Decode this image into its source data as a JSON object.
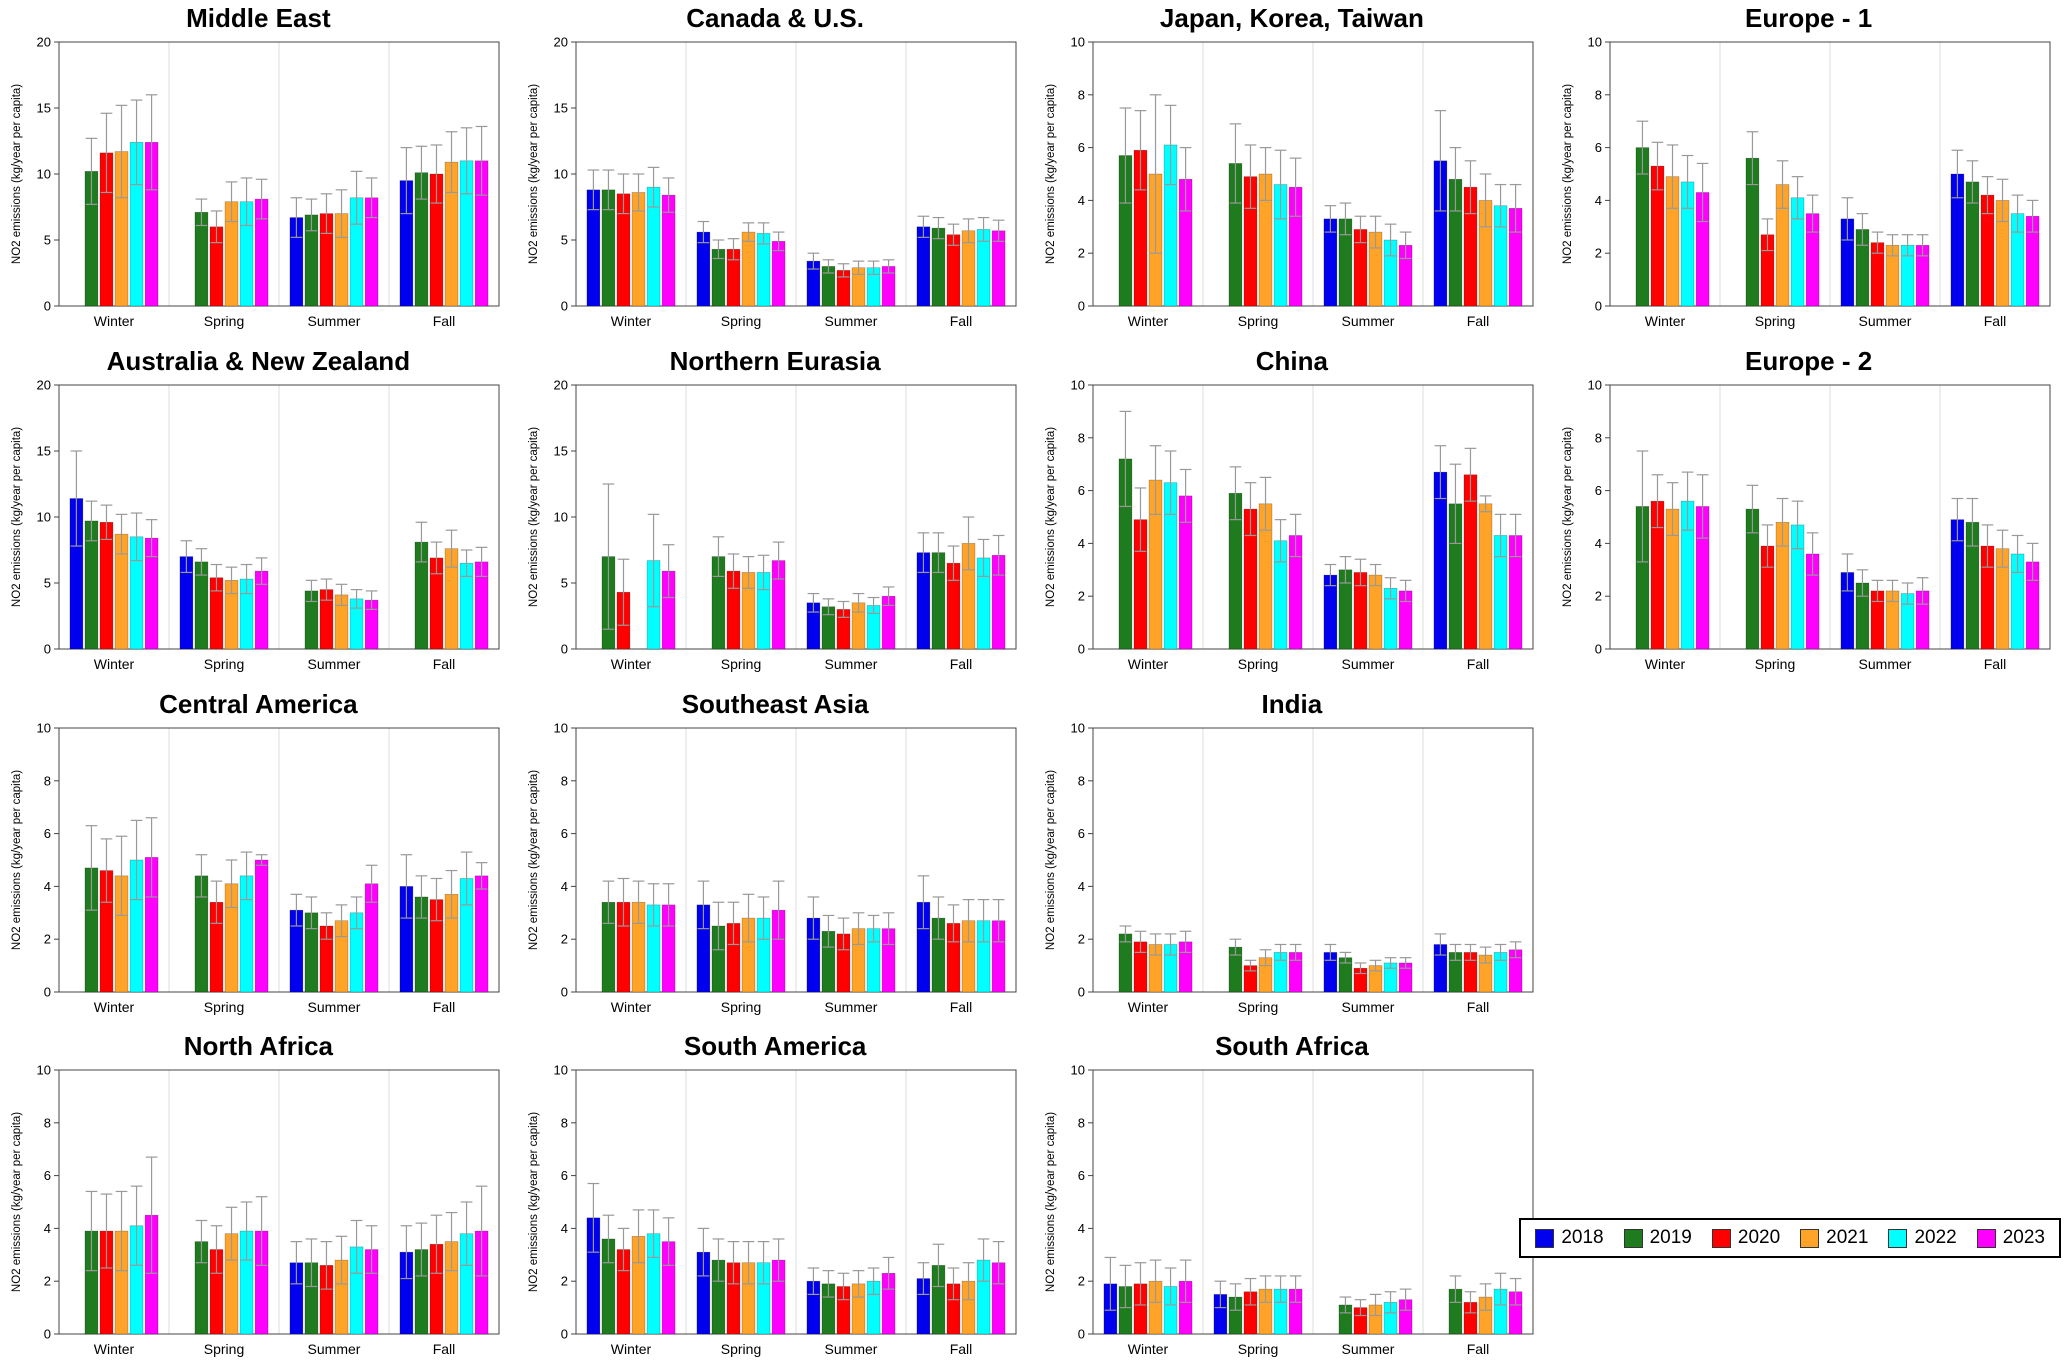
{
  "figure": {
    "background": "#ffffff"
  },
  "chart_data": {
    "type": "bar",
    "ylabel": "NO2 emissions (kg/year per capita)",
    "categories": [
      "Winter",
      "Spring",
      "Summer",
      "Fall"
    ],
    "years": [
      "2018",
      "2019",
      "2020",
      "2021",
      "2022",
      "2023"
    ],
    "colors": {
      "2018": "#0000ee",
      "2019": "#1e7b1e",
      "2020": "#ff0000",
      "2021": "#ffa428",
      "2022": "#00ffff",
      "2023": "#ff00ff"
    },
    "error_bar_color": "#999999",
    "grid": "vertical-light",
    "legend": {
      "position": "bottom-right",
      "labels": [
        "2018",
        "2019",
        "2020",
        "2021",
        "2022",
        "2023"
      ]
    },
    "panels": [
      {
        "title": "Middle East",
        "ymax": 20,
        "ytick": 5,
        "values": {
          "2018": [
            null,
            null,
            6.7,
            9.5
          ],
          "2019": [
            10.2,
            7.1,
            6.9,
            10.1
          ],
          "2020": [
            11.6,
            6.0,
            7.0,
            10.0
          ],
          "2021": [
            11.7,
            7.9,
            7.0,
            10.9
          ],
          "2022": [
            12.4,
            7.9,
            8.2,
            11.0
          ],
          "2023": [
            12.4,
            8.1,
            8.2,
            11.0
          ]
        },
        "errors": {
          "2018": [
            null,
            null,
            1.5,
            2.5
          ],
          "2019": [
            2.5,
            1.0,
            1.2,
            2.0
          ],
          "2020": [
            3.0,
            1.2,
            1.5,
            2.2
          ],
          "2021": [
            3.5,
            1.5,
            1.8,
            2.3
          ],
          "2022": [
            3.2,
            1.8,
            2.0,
            2.5
          ],
          "2023": [
            3.6,
            1.5,
            1.5,
            2.6
          ]
        }
      },
      {
        "title": "Canada & U.S.",
        "ymax": 20,
        "ytick": 5,
        "values": {
          "2018": [
            8.8,
            5.6,
            3.4,
            6.0
          ],
          "2019": [
            8.8,
            4.3,
            3.0,
            5.9
          ],
          "2020": [
            8.5,
            4.3,
            2.7,
            5.4
          ],
          "2021": [
            8.6,
            5.6,
            2.9,
            5.7
          ],
          "2022": [
            9.0,
            5.5,
            2.9,
            5.8
          ],
          "2023": [
            8.4,
            4.9,
            3.0,
            5.7
          ]
        },
        "errors": {
          "2018": [
            1.5,
            0.8,
            0.6,
            0.8
          ],
          "2019": [
            1.5,
            0.7,
            0.5,
            0.8
          ],
          "2020": [
            1.5,
            0.8,
            0.5,
            0.8
          ],
          "2021": [
            1.4,
            0.7,
            0.5,
            0.9
          ],
          "2022": [
            1.5,
            0.8,
            0.5,
            0.9
          ],
          "2023": [
            1.3,
            0.7,
            0.5,
            0.8
          ]
        }
      },
      {
        "title": "Japan, Korea, Taiwan",
        "ymax": 10,
        "ytick": 2,
        "values": {
          "2018": [
            null,
            null,
            3.3,
            5.5
          ],
          "2019": [
            5.7,
            5.4,
            3.3,
            4.8
          ],
          "2020": [
            5.9,
            4.9,
            2.9,
            4.5
          ],
          "2021": [
            5.0,
            5.0,
            2.8,
            4.0
          ],
          "2022": [
            6.1,
            4.6,
            2.5,
            3.8
          ],
          "2023": [
            4.8,
            4.5,
            2.3,
            3.7
          ]
        },
        "errors": {
          "2018": [
            null,
            null,
            0.5,
            1.9
          ],
          "2019": [
            1.8,
            1.5,
            0.6,
            1.2
          ],
          "2020": [
            1.5,
            1.2,
            0.5,
            1.0
          ],
          "2021": [
            3.0,
            1.0,
            0.6,
            1.0
          ],
          "2022": [
            1.5,
            1.3,
            0.6,
            0.8
          ],
          "2023": [
            1.2,
            1.1,
            0.5,
            0.9
          ]
        }
      },
      {
        "title": "Europe - 1",
        "ymax": 10,
        "ytick": 2,
        "values": {
          "2018": [
            null,
            null,
            3.3,
            5.0
          ],
          "2019": [
            6.0,
            5.6,
            2.9,
            4.7
          ],
          "2020": [
            5.3,
            2.7,
            2.4,
            4.2
          ],
          "2021": [
            4.9,
            4.6,
            2.3,
            4.0
          ],
          "2022": [
            4.7,
            4.1,
            2.3,
            3.5
          ],
          "2023": [
            4.3,
            3.5,
            2.3,
            3.4
          ]
        },
        "errors": {
          "2018": [
            null,
            null,
            0.8,
            0.9
          ],
          "2019": [
            1.0,
            1.0,
            0.6,
            0.8
          ],
          "2020": [
            0.9,
            0.6,
            0.4,
            0.7
          ],
          "2021": [
            1.2,
            0.9,
            0.4,
            0.8
          ],
          "2022": [
            1.0,
            0.8,
            0.4,
            0.7
          ],
          "2023": [
            1.1,
            0.7,
            0.4,
            0.6
          ]
        }
      },
      {
        "title": "Australia & New Zealand",
        "ymax": 20,
        "ytick": 5,
        "values": {
          "2018": [
            11.4,
            7.0,
            null,
            null
          ],
          "2019": [
            9.7,
            6.6,
            4.4,
            8.1
          ],
          "2020": [
            9.6,
            5.4,
            4.5,
            6.9
          ],
          "2021": [
            8.7,
            5.2,
            4.1,
            7.6
          ],
          "2022": [
            8.5,
            5.3,
            3.8,
            6.5
          ],
          "2023": [
            8.4,
            5.9,
            3.7,
            6.6
          ]
        },
        "errors": {
          "2018": [
            3.6,
            1.2,
            null,
            null
          ],
          "2019": [
            1.5,
            1.0,
            0.8,
            1.5
          ],
          "2020": [
            1.3,
            1.0,
            0.8,
            1.2
          ],
          "2021": [
            1.5,
            1.0,
            0.8,
            1.4
          ],
          "2022": [
            1.8,
            1.1,
            0.7,
            1.0
          ],
          "2023": [
            1.4,
            1.0,
            0.7,
            1.1
          ]
        }
      },
      {
        "title": "Northern Eurasia",
        "ymax": 20,
        "ytick": 5,
        "values": {
          "2018": [
            null,
            null,
            3.5,
            7.3
          ],
          "2019": [
            7.0,
            7.0,
            3.2,
            7.3
          ],
          "2020": [
            4.3,
            5.9,
            3.0,
            6.5
          ],
          "2021": [
            null,
            5.8,
            3.5,
            8.0
          ],
          "2022": [
            6.7,
            5.8,
            3.3,
            6.9
          ],
          "2023": [
            5.9,
            6.7,
            4.0,
            7.1
          ]
        },
        "errors": {
          "2018": [
            null,
            null,
            0.7,
            1.5
          ],
          "2019": [
            5.5,
            1.5,
            0.6,
            1.5
          ],
          "2020": [
            2.5,
            1.3,
            0.6,
            1.3
          ],
          "2021": [
            null,
            1.2,
            0.7,
            2.0
          ],
          "2022": [
            3.5,
            1.3,
            0.6,
            1.4
          ],
          "2023": [
            2.0,
            1.4,
            0.7,
            1.5
          ]
        }
      },
      {
        "title": "China",
        "ymax": 10,
        "ytick": 2,
        "values": {
          "2018": [
            null,
            null,
            2.8,
            6.7
          ],
          "2019": [
            7.2,
            5.9,
            3.0,
            5.5
          ],
          "2020": [
            4.9,
            5.3,
            2.9,
            6.6
          ],
          "2021": [
            6.4,
            5.5,
            2.8,
            5.5
          ],
          "2022": [
            6.3,
            4.1,
            2.3,
            4.3
          ],
          "2023": [
            5.8,
            4.3,
            2.2,
            4.3
          ]
        },
        "errors": {
          "2018": [
            null,
            null,
            0.4,
            1.0
          ],
          "2019": [
            1.8,
            1.0,
            0.5,
            1.5
          ],
          "2020": [
            1.2,
            1.0,
            0.5,
            1.0
          ],
          "2021": [
            1.3,
            1.0,
            0.4,
            0.3
          ],
          "2022": [
            1.2,
            0.8,
            0.4,
            0.8
          ],
          "2023": [
            1.0,
            0.8,
            0.4,
            0.8
          ]
        }
      },
      {
        "title": "Europe - 2",
        "ymax": 10,
        "ytick": 2,
        "values": {
          "2018": [
            null,
            null,
            2.9,
            4.9
          ],
          "2019": [
            5.4,
            5.3,
            2.5,
            4.8
          ],
          "2020": [
            5.6,
            3.9,
            2.2,
            3.9
          ],
          "2021": [
            5.3,
            4.8,
            2.2,
            3.8
          ],
          "2022": [
            5.6,
            4.7,
            2.1,
            3.6
          ],
          "2023": [
            5.4,
            3.6,
            2.2,
            3.3
          ]
        },
        "errors": {
          "2018": [
            null,
            null,
            0.7,
            0.8
          ],
          "2019": [
            2.1,
            0.9,
            0.5,
            0.9
          ],
          "2020": [
            1.0,
            0.8,
            0.4,
            0.8
          ],
          "2021": [
            1.0,
            0.9,
            0.4,
            0.7
          ],
          "2022": [
            1.1,
            0.9,
            0.4,
            0.7
          ],
          "2023": [
            1.2,
            0.8,
            0.5,
            0.7
          ]
        }
      },
      {
        "title": "Central America",
        "ymax": 10,
        "ytick": 2,
        "values": {
          "2018": [
            null,
            null,
            3.1,
            4.0
          ],
          "2019": [
            4.7,
            4.4,
            3.0,
            3.6
          ],
          "2020": [
            4.6,
            3.4,
            2.5,
            3.5
          ],
          "2021": [
            4.4,
            4.1,
            2.7,
            3.7
          ],
          "2022": [
            5.0,
            4.4,
            3.0,
            4.3
          ],
          "2023": [
            5.1,
            5.0,
            4.1,
            4.4
          ]
        },
        "errors": {
          "2018": [
            null,
            null,
            0.6,
            1.2
          ],
          "2019": [
            1.6,
            0.8,
            0.6,
            0.8
          ],
          "2020": [
            1.2,
            0.8,
            0.5,
            0.8
          ],
          "2021": [
            1.5,
            0.9,
            0.6,
            0.9
          ],
          "2022": [
            1.5,
            0.9,
            0.6,
            1.0
          ],
          "2023": [
            1.5,
            0.2,
            0.7,
            0.5
          ]
        }
      },
      {
        "title": "Southeast Asia",
        "ymax": 10,
        "ytick": 2,
        "values": {
          "2018": [
            null,
            3.3,
            2.8,
            3.4
          ],
          "2019": [
            3.4,
            2.5,
            2.3,
            2.8
          ],
          "2020": [
            3.4,
            2.6,
            2.2,
            2.6
          ],
          "2021": [
            3.4,
            2.8,
            2.4,
            2.7
          ],
          "2022": [
            3.3,
            2.8,
            2.4,
            2.7
          ],
          "2023": [
            3.3,
            3.1,
            2.4,
            2.7
          ]
        },
        "errors": {
          "2018": [
            null,
            0.9,
            0.8,
            1.0
          ],
          "2019": [
            0.8,
            0.9,
            0.6,
            0.8
          ],
          "2020": [
            0.9,
            0.8,
            0.6,
            0.7
          ],
          "2021": [
            0.8,
            0.9,
            0.6,
            0.8
          ],
          "2022": [
            0.8,
            0.8,
            0.5,
            0.8
          ],
          "2023": [
            0.8,
            1.1,
            0.6,
            0.8
          ]
        }
      },
      {
        "title": "India",
        "ymax": 10,
        "ytick": 2,
        "values": {
          "2018": [
            null,
            null,
            1.5,
            1.8
          ],
          "2019": [
            2.2,
            1.7,
            1.3,
            1.5
          ],
          "2020": [
            1.9,
            1.0,
            0.9,
            1.5
          ],
          "2021": [
            1.8,
            1.3,
            1.0,
            1.4
          ],
          "2022": [
            1.8,
            1.5,
            1.1,
            1.5
          ],
          "2023": [
            1.9,
            1.5,
            1.1,
            1.6
          ]
        },
        "errors": {
          "2018": [
            null,
            null,
            0.3,
            0.4
          ],
          "2019": [
            0.3,
            0.3,
            0.2,
            0.3
          ],
          "2020": [
            0.4,
            0.2,
            0.2,
            0.3
          ],
          "2021": [
            0.4,
            0.3,
            0.2,
            0.3
          ],
          "2022": [
            0.4,
            0.3,
            0.2,
            0.3
          ],
          "2023": [
            0.4,
            0.3,
            0.2,
            0.3
          ]
        }
      },
      {
        "title": "North Africa",
        "ymax": 10,
        "ytick": 2,
        "values": {
          "2018": [
            null,
            null,
            2.7,
            3.1
          ],
          "2019": [
            3.9,
            3.5,
            2.7,
            3.2
          ],
          "2020": [
            3.9,
            3.2,
            2.6,
            3.4
          ],
          "2021": [
            3.9,
            3.8,
            2.8,
            3.5
          ],
          "2022": [
            4.1,
            3.9,
            3.3,
            3.8
          ],
          "2023": [
            4.5,
            3.9,
            3.2,
            3.9
          ]
        },
        "errors": {
          "2018": [
            null,
            null,
            0.8,
            1.0
          ],
          "2019": [
            1.5,
            0.8,
            0.9,
            1.0
          ],
          "2020": [
            1.4,
            0.9,
            0.9,
            1.1
          ],
          "2021": [
            1.5,
            1.0,
            0.9,
            1.1
          ],
          "2022": [
            1.5,
            1.1,
            1.0,
            1.2
          ],
          "2023": [
            2.2,
            1.3,
            0.9,
            1.7
          ]
        }
      },
      {
        "title": "South America",
        "ymax": 10,
        "ytick": 2,
        "values": {
          "2018": [
            4.4,
            3.1,
            2.0,
            2.1
          ],
          "2019": [
            3.6,
            2.8,
            1.9,
            2.6
          ],
          "2020": [
            3.2,
            2.7,
            1.8,
            1.9
          ],
          "2021": [
            3.7,
            2.7,
            1.9,
            2.0
          ],
          "2022": [
            3.8,
            2.7,
            2.0,
            2.8
          ],
          "2023": [
            3.5,
            2.8,
            2.3,
            2.7
          ]
        },
        "errors": {
          "2018": [
            1.3,
            0.9,
            0.5,
            0.6
          ],
          "2019": [
            0.9,
            0.8,
            0.5,
            0.8
          ],
          "2020": [
            0.8,
            0.8,
            0.5,
            0.6
          ],
          "2021": [
            1.0,
            0.8,
            0.5,
            0.7
          ],
          "2022": [
            0.9,
            0.8,
            0.5,
            0.8
          ],
          "2023": [
            0.9,
            0.8,
            0.6,
            0.8
          ]
        }
      },
      {
        "title": "South Africa",
        "ymax": 10,
        "ytick": 2,
        "values": {
          "2018": [
            1.9,
            1.5,
            null,
            null
          ],
          "2019": [
            1.8,
            1.4,
            1.1,
            1.7
          ],
          "2020": [
            1.9,
            1.6,
            1.0,
            1.2
          ],
          "2021": [
            2.0,
            1.7,
            1.1,
            1.4
          ],
          "2022": [
            1.8,
            1.7,
            1.2,
            1.7
          ],
          "2023": [
            2.0,
            1.7,
            1.3,
            1.6
          ]
        },
        "errors": {
          "2018": [
            1.0,
            0.5,
            null,
            null
          ],
          "2019": [
            0.8,
            0.5,
            0.3,
            0.5
          ],
          "2020": [
            0.8,
            0.5,
            0.3,
            0.4
          ],
          "2021": [
            0.8,
            0.5,
            0.4,
            0.5
          ],
          "2022": [
            0.7,
            0.5,
            0.4,
            0.6
          ],
          "2023": [
            0.8,
            0.5,
            0.4,
            0.5
          ]
        }
      }
    ]
  }
}
